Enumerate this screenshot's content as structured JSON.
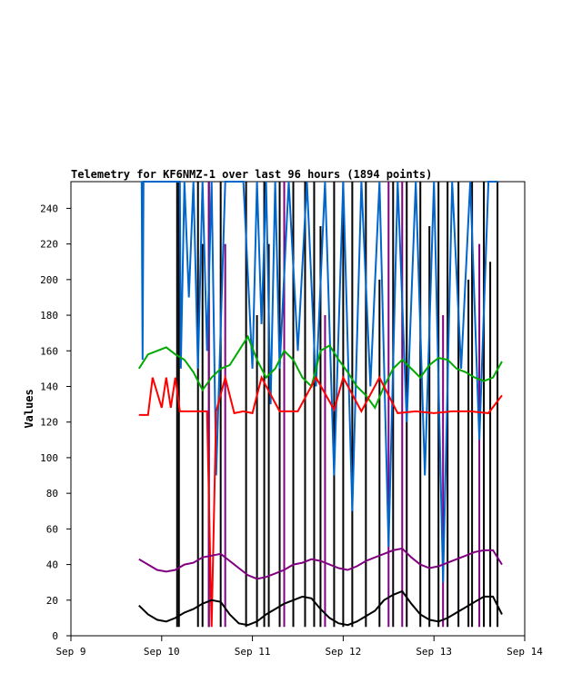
{
  "chart_data": {
    "type": "line",
    "title": "Telemetry for KF6NMZ-1 over last 96 hours (1894 points)",
    "xlabel": "",
    "ylabel": "Values",
    "x_ticks": [
      "Sep 9",
      "Sep 10",
      "Sep 11",
      "Sep 12",
      "Sep 13",
      "Sep 14"
    ],
    "x_range_days": [
      9,
      14
    ],
    "ylim": [
      0,
      255
    ],
    "y_ticks": [
      0,
      20,
      40,
      60,
      80,
      100,
      120,
      140,
      160,
      180,
      200,
      220,
      240
    ],
    "grid": false,
    "colors": {
      "black": "#000000",
      "red": "#ff0000",
      "green": "#00aa00",
      "purple": "#800080",
      "blue": "#0066cc"
    },
    "series": [
      {
        "color": "blue",
        "x": [
          9.78,
          9.79,
          9.8,
          10.2,
          10.21,
          10.25,
          10.3,
          10.35,
          10.4,
          10.45,
          10.5,
          10.55,
          10.6,
          10.7,
          10.9,
          11.0,
          11.05,
          11.1,
          11.15,
          11.2,
          11.25,
          11.3,
          11.4,
          11.5,
          11.6,
          11.7,
          11.8,
          11.9,
          12.0,
          12.1,
          12.2,
          12.3,
          12.4,
          12.5,
          12.6,
          12.7,
          12.8,
          12.9,
          13.0,
          13.1,
          13.2,
          13.3,
          13.4,
          13.5,
          13.6,
          13.7
        ],
        "y": [
          255,
          155,
          255,
          255,
          150,
          255,
          190,
          255,
          150,
          255,
          160,
          255,
          90,
          255,
          255,
          150,
          255,
          175,
          255,
          130,
          255,
          150,
          255,
          160,
          255,
          140,
          255,
          90,
          255,
          70,
          255,
          140,
          255,
          50,
          255,
          120,
          255,
          90,
          255,
          30,
          255,
          150,
          255,
          110,
          255,
          255
        ]
      },
      {
        "color": "green",
        "x": [
          9.75,
          9.85,
          9.95,
          10.05,
          10.15,
          10.25,
          10.35,
          10.45,
          10.55,
          10.65,
          10.75,
          10.85,
          10.95,
          11.05,
          11.15,
          11.25,
          11.35,
          11.45,
          11.55,
          11.65,
          11.75,
          11.85,
          11.95,
          12.05,
          12.15,
          12.25,
          12.35,
          12.45,
          12.55,
          12.65,
          12.75,
          12.85,
          12.95,
          13.05,
          13.15,
          13.25,
          13.35,
          13.45,
          13.55,
          13.65,
          13.75
        ],
        "y": [
          150,
          158,
          160,
          162,
          158,
          155,
          148,
          138,
          145,
          150,
          152,
          160,
          168,
          155,
          145,
          150,
          160,
          155,
          145,
          140,
          160,
          163,
          155,
          148,
          140,
          135,
          128,
          140,
          150,
          155,
          150,
          145,
          152,
          156,
          155,
          150,
          148,
          145,
          143,
          145,
          154
        ]
      },
      {
        "color": "red",
        "x": [
          9.75,
          9.85,
          9.9,
          10.0,
          10.05,
          10.1,
          10.15,
          10.2,
          10.3,
          10.4,
          10.5,
          10.55,
          10.6,
          10.7,
          10.8,
          10.9,
          11.0,
          11.1,
          11.3,
          11.5,
          11.7,
          11.9,
          12.0,
          12.2,
          12.4,
          12.6,
          12.8,
          13.0,
          13.2,
          13.4,
          13.6,
          13.75
        ],
        "y": [
          124,
          124,
          145,
          128,
          145,
          128,
          145,
          126,
          126,
          126,
          126,
          5,
          126,
          145,
          125,
          126,
          125,
          145,
          126,
          126,
          145,
          127,
          145,
          126,
          145,
          125,
          126,
          125,
          126,
          126,
          125,
          135
        ]
      },
      {
        "color": "purple",
        "x": [
          9.75,
          9.85,
          9.95,
          10.05,
          10.15,
          10.25,
          10.35,
          10.45,
          10.55,
          10.65,
          10.75,
          10.85,
          10.95,
          11.05,
          11.15,
          11.25,
          11.35,
          11.45,
          11.55,
          11.65,
          11.75,
          11.85,
          11.95,
          12.05,
          12.15,
          12.25,
          12.35,
          12.45,
          12.55,
          12.65,
          12.75,
          12.85,
          12.95,
          13.05,
          13.15,
          13.25,
          13.35,
          13.45,
          13.55,
          13.65,
          13.75
        ],
        "y": [
          43,
          40,
          37,
          36,
          37,
          40,
          41,
          44,
          45,
          46,
          42,
          38,
          34,
          32,
          33,
          35,
          37,
          40,
          41,
          43,
          42,
          40,
          38,
          37,
          39,
          42,
          44,
          46,
          48,
          49,
          44,
          40,
          38,
          39,
          41,
          43,
          45,
          47,
          48,
          48,
          40
        ]
      },
      {
        "color": "black",
        "x": [
          9.75,
          9.85,
          9.95,
          10.05,
          10.15,
          10.25,
          10.35,
          10.45,
          10.55,
          10.65,
          10.75,
          10.85,
          10.95,
          11.05,
          11.15,
          11.25,
          11.35,
          11.45,
          11.55,
          11.65,
          11.75,
          11.85,
          11.95,
          12.05,
          12.15,
          12.25,
          12.35,
          12.45,
          12.55,
          12.65,
          12.75,
          12.85,
          12.95,
          13.05,
          13.15,
          13.25,
          13.35,
          13.45,
          13.55,
          13.65,
          13.75
        ],
        "y": [
          17,
          12,
          9,
          8,
          10,
          13,
          15,
          18,
          20,
          19,
          12,
          7,
          6,
          8,
          12,
          15,
          18,
          20,
          22,
          21,
          15,
          10,
          7,
          6,
          8,
          11,
          14,
          20,
          23,
          25,
          18,
          12,
          9,
          8,
          10,
          13,
          16,
          19,
          22,
          22,
          12
        ]
      }
    ],
    "spikes": [
      {
        "color": "black",
        "x": [
          10.17,
          10.19,
          10.4,
          10.45,
          10.52,
          10.65,
          10.93,
          11.05,
          11.13,
          11.18,
          11.3,
          11.45,
          11.58,
          11.68,
          11.75,
          11.9,
          12.0,
          12.1,
          12.25,
          12.4,
          12.55,
          12.7,
          12.85,
          12.95,
          13.05,
          13.15,
          13.27,
          13.38,
          13.42,
          13.55,
          13.62,
          13.7
        ],
        "y": [
          255,
          255,
          255,
          220,
          255,
          255,
          255,
          180,
          255,
          220,
          255,
          255,
          255,
          255,
          230,
          255,
          255,
          255,
          255,
          200,
          255,
          255,
          255,
          230,
          255,
          255,
          255,
          200,
          255,
          255,
          210,
          255
        ]
      },
      {
        "color": "purple",
        "x": [
          10.52,
          10.7,
          11.35,
          11.8,
          12.5,
          12.65,
          13.1,
          13.5
        ],
        "y": [
          255,
          220,
          255,
          180,
          255,
          255,
          180,
          220
        ]
      }
    ]
  }
}
